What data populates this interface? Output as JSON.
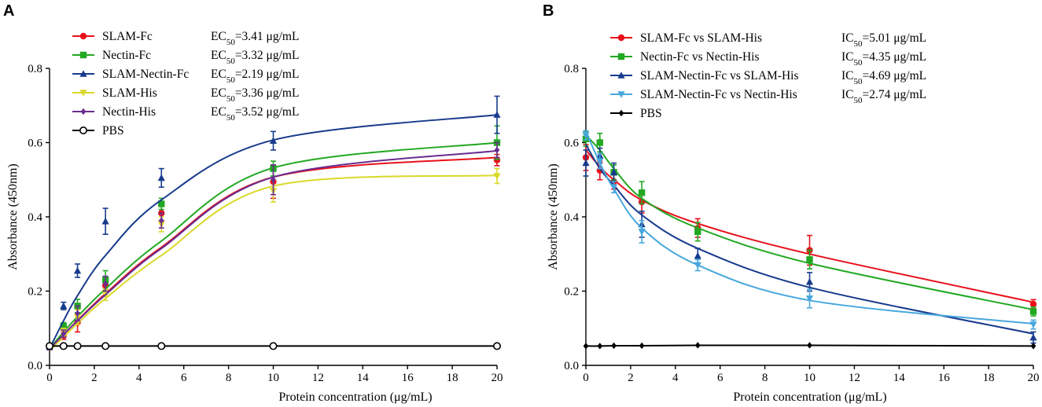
{
  "chart_data": [
    {
      "type": "line",
      "panel_label": "A",
      "xlabel": "Protein concentration (μg/mL)",
      "ylabel": "Absorbance (450nm)",
      "xlim": [
        0,
        20
      ],
      "ylim": [
        0,
        0.8
      ],
      "xticks": [
        "0",
        "2",
        "4",
        "6",
        "8",
        "10",
        "12",
        "14",
        "16",
        "18",
        "20"
      ],
      "yticks": [
        "0.0",
        "0.2",
        "0.4",
        "0.6",
        "0.8"
      ],
      "x": [
        0,
        0.625,
        1.25,
        2.5,
        5,
        10,
        20
      ],
      "series": [
        {
          "name": "SLAM-Fc",
          "stat_prefix": "EC",
          "stat_value": "=3.41 μg/mL",
          "color": "#e8111b",
          "marker": "circle",
          "values": [
            0.05,
            0.08,
            0.115,
            0.215,
            0.41,
            0.495,
            0.553
          ],
          "errors": [
            0.008,
            0.01,
            0.025,
            0.02,
            0.02,
            0.045,
            0.015
          ],
          "fit": [
            0.045,
            0.083,
            0.121,
            0.193,
            0.318,
            0.507,
            0.56
          ]
        },
        {
          "name": "Nectin-Fc",
          "stat_prefix": "EC",
          "stat_value": "=3.32 μg/mL",
          "color": "#22a822",
          "marker": "square",
          "values": [
            0.05,
            0.105,
            0.16,
            0.23,
            0.435,
            0.53,
            0.6
          ],
          "errors": [
            0.008,
            0.01,
            0.018,
            0.025,
            0.015,
            0.02,
            0.045
          ],
          "fit": [
            0.045,
            0.09,
            0.131,
            0.206,
            0.335,
            0.532,
            0.6
          ]
        },
        {
          "name": "SLAM-Nectin-Fc",
          "stat_prefix": "EC",
          "stat_value": "=2.19 μg/mL",
          "color": "#173b8c",
          "marker": "triangle-up",
          "values": [
            0.05,
            0.16,
            0.255,
            0.388,
            0.505,
            0.605,
            0.675
          ],
          "errors": [
            0.008,
            0.01,
            0.018,
            0.035,
            0.025,
            0.025,
            0.05
          ],
          "fit": [
            0.045,
            0.12,
            0.188,
            0.296,
            0.446,
            0.607,
            0.675
          ]
        },
        {
          "name": "SLAM-His",
          "stat_prefix": "EC",
          "stat_value": "=3.36 μg/mL",
          "color": "#d9d92a",
          "marker": "triangle-down",
          "values": [
            0.05,
            0.09,
            0.13,
            0.19,
            0.38,
            0.47,
            0.51
          ],
          "errors": [
            0.008,
            0.01,
            0.02,
            0.015,
            0.02,
            0.03,
            0.02
          ],
          "fit": [
            0.04,
            0.077,
            0.113,
            0.18,
            0.296,
            0.483,
            0.512
          ]
        },
        {
          "name": "Nectin-His",
          "stat_prefix": "EC",
          "stat_value": "=3.52 μg/mL",
          "color": "#6a2c91",
          "marker": "diamond",
          "values": [
            0.05,
            0.085,
            0.14,
            0.22,
            0.39,
            0.5,
            0.58
          ],
          "errors": [
            0.008,
            0.01,
            0.02,
            0.02,
            0.02,
            0.04,
            0.02
          ],
          "fit": [
            0.045,
            0.083,
            0.12,
            0.19,
            0.315,
            0.507,
            0.578
          ]
        },
        {
          "name": "PBS",
          "stat_prefix": "",
          "stat_value": "",
          "color": "#000000",
          "marker": "open-circle",
          "values": [
            0.052,
            0.052,
            0.052,
            0.052,
            0.052,
            0.052,
            0.052
          ],
          "errors": [
            0,
            0,
            0,
            0,
            0,
            0,
            0
          ],
          "fit": [
            0.052,
            0.052,
            0.052,
            0.052,
            0.052,
            0.052,
            0.052
          ]
        }
      ]
    },
    {
      "type": "line",
      "panel_label": "B",
      "xlabel": "Protein concentration (μg/mL)",
      "ylabel": "Absorbance (450nm)",
      "xlim": [
        0,
        20
      ],
      "ylim": [
        0,
        0.8
      ],
      "xticks": [
        "0",
        "2",
        "4",
        "6",
        "8",
        "10",
        "12",
        "14",
        "16",
        "18",
        "20"
      ],
      "yticks": [
        "0.0",
        "0.2",
        "0.4",
        "0.6",
        "0.8"
      ],
      "x": [
        0,
        0.625,
        1.25,
        2.5,
        5,
        10,
        20
      ],
      "series": [
        {
          "name": "SLAM-Fc vs SLAM-His",
          "stat_prefix": "IC",
          "stat_value": "=5.01 μg/mL",
          "color": "#e8111b",
          "marker": "circle",
          "values": [
            0.56,
            0.525,
            0.495,
            0.44,
            0.37,
            0.31,
            0.165
          ],
          "errors": [
            0.035,
            0.025,
            0.02,
            0.03,
            0.025,
            0.04,
            0.012
          ],
          "fit": [
            0.58,
            0.535,
            0.5,
            0.445,
            0.382,
            0.3,
            0.17
          ]
        },
        {
          "name": "Nectin-Fc vs Nectin-His",
          "stat_prefix": "IC",
          "stat_value": "=4.35 μg/mL",
          "color": "#22a822",
          "marker": "square",
          "values": [
            0.61,
            0.6,
            0.52,
            0.465,
            0.36,
            0.285,
            0.145
          ],
          "errors": [
            0.02,
            0.025,
            0.02,
            0.03,
            0.025,
            0.025,
            0.012
          ],
          "fit": [
            0.62,
            0.58,
            0.53,
            0.45,
            0.37,
            0.275,
            0.15
          ]
        },
        {
          "name": "SLAM-Nectin-Fc vs SLAM-His",
          "stat_prefix": "IC",
          "stat_value": "=4.69 μg/mL",
          "color": "#173b8c",
          "marker": "triangle-up",
          "values": [
            0.545,
            0.565,
            0.52,
            0.38,
            0.295,
            0.225,
            0.075
          ],
          "errors": [
            0.035,
            0.02,
            0.025,
            0.035,
            0.02,
            0.025,
            0.015
          ],
          "fit": [
            0.595,
            0.53,
            0.485,
            0.405,
            0.315,
            0.21,
            0.085
          ]
        },
        {
          "name": "SLAM-Nectin-Fc vs Nectin-His",
          "stat_prefix": "IC",
          "stat_value": "=2.74 μg/mL",
          "color": "#47a7dd",
          "marker": "triangle-down",
          "values": [
            0.62,
            0.55,
            0.48,
            0.36,
            0.27,
            0.18,
            0.11
          ],
          "errors": [
            0.012,
            0.02,
            0.015,
            0.03,
            0.015,
            0.025,
            0.012
          ],
          "fit": [
            0.63,
            0.545,
            0.475,
            0.37,
            0.27,
            0.175,
            0.112
          ]
        },
        {
          "name": "PBS",
          "stat_prefix": "",
          "stat_value": "",
          "color": "#000000",
          "marker": "diamond",
          "values": [
            0.052,
            0.052,
            0.053,
            0.053,
            0.054,
            0.054,
            0.052
          ],
          "errors": [
            0,
            0,
            0,
            0,
            0,
            0,
            0
          ],
          "fit": [
            0.052,
            0.052,
            0.053,
            0.053,
            0.054,
            0.054,
            0.052
          ]
        }
      ]
    }
  ]
}
